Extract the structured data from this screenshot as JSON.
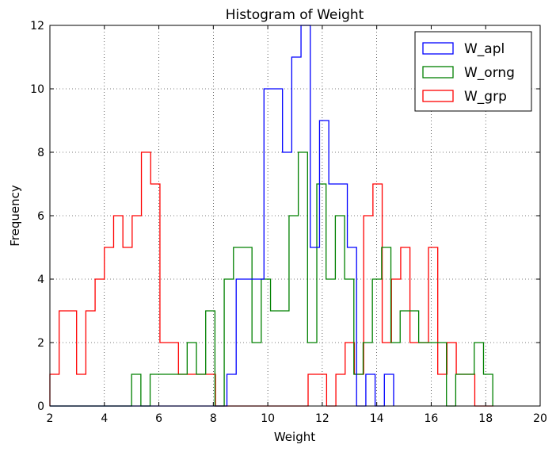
{
  "chart_data": {
    "type": "histogram",
    "title": "Histogram of Weight",
    "xlabel": "Weight",
    "ylabel": "Frequency",
    "xlim": [
      2,
      20
    ],
    "ylim": [
      0,
      12
    ],
    "xticks": [
      2,
      4,
      6,
      8,
      10,
      12,
      14,
      16,
      18,
      20
    ],
    "yticks": [
      0,
      2,
      4,
      6,
      8,
      10,
      12
    ],
    "grid": true,
    "legend_position": "top-right",
    "series": [
      {
        "name": "W_grp",
        "color": "#ff0000",
        "bins": [
          2.0,
          2.34,
          2.98,
          3.32,
          3.66,
          4.0,
          4.34,
          4.68,
          5.02,
          5.36,
          5.7,
          6.04,
          6.38,
          6.72,
          7.06,
          7.4,
          7.74,
          8.08,
          8.42,
          8.76,
          9.1,
          9.44,
          9.78,
          10.12,
          10.46,
          10.8,
          11.14,
          11.48,
          11.82,
          12.16,
          12.5,
          12.84,
          13.18,
          13.52,
          13.86,
          14.2,
          14.54,
          14.88,
          15.22,
          15.56,
          15.9,
          16.24,
          16.58,
          16.92,
          17.26,
          17.6,
          17.94,
          18.28
        ],
        "counts": [
          1,
          3,
          1,
          3,
          4,
          5,
          6,
          5,
          6,
          8,
          7,
          2,
          2,
          1,
          1,
          1,
          1,
          0,
          0,
          0,
          0,
          0,
          0,
          0,
          0,
          0,
          0,
          1,
          1,
          0,
          1,
          2,
          1,
          6,
          7,
          2,
          4,
          5,
          2,
          2,
          5,
          1,
          2,
          1,
          1,
          0,
          0
        ]
      },
      {
        "name": "W_orng",
        "color": "#008000",
        "bins": [
          2.0,
          5.0,
          5.34,
          5.68,
          6.02,
          6.36,
          6.7,
          7.04,
          7.38,
          7.72,
          8.06,
          8.4,
          8.74,
          9.08,
          9.42,
          9.76,
          10.1,
          10.44,
          10.78,
          11.12,
          11.46,
          11.8,
          12.14,
          12.48,
          12.82,
          13.16,
          13.5,
          13.84,
          14.18,
          14.52,
          14.86,
          15.2,
          15.54,
          15.88,
          16.22,
          16.56,
          16.9,
          17.24,
          17.58,
          17.92,
          18.26
        ],
        "counts": [
          0,
          1,
          0,
          1,
          1,
          1,
          1,
          2,
          1,
          3,
          0,
          4,
          5,
          5,
          2,
          4,
          3,
          3,
          6,
          8,
          2,
          7,
          4,
          6,
          4,
          1,
          2,
          4,
          5,
          2,
          3,
          3,
          2,
          2,
          2,
          0,
          1,
          1,
          2,
          1
        ]
      },
      {
        "name": "W_apl",
        "color": "#0000ff",
        "bins": [
          2.0,
          8.5,
          8.84,
          9.18,
          9.52,
          9.86,
          10.2,
          10.54,
          10.88,
          11.22,
          11.56,
          11.9,
          12.24,
          12.58,
          12.92,
          13.26,
          13.6,
          13.94,
          14.28,
          14.62
        ],
        "counts": [
          0,
          1,
          4,
          4,
          4,
          10,
          10,
          8,
          11,
          12,
          5,
          9,
          7,
          7,
          5,
          0,
          1,
          0,
          1
        ]
      }
    ],
    "legend": [
      {
        "name": "W_apl",
        "color": "#0000ff"
      },
      {
        "name": "W_orng",
        "color": "#008000"
      },
      {
        "name": "W_grp",
        "color": "#ff0000"
      }
    ]
  }
}
